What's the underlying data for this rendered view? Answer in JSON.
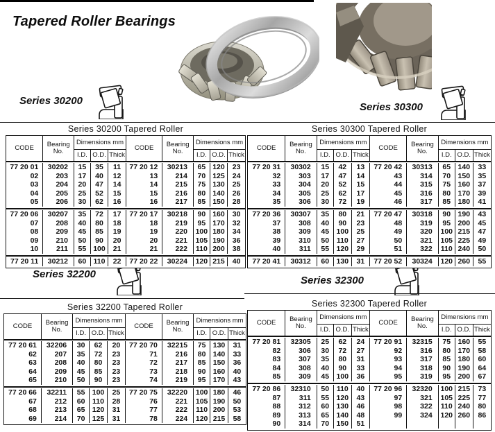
{
  "page": {
    "title": "Tapered Roller Bearings",
    "series_labels": [
      {
        "label": "Series 30200"
      },
      {
        "label": "Series 30300"
      },
      {
        "label": "Series 32200"
      },
      {
        "label": "Series 32300"
      }
    ],
    "icons": {
      "bearing_section": "bearing-section-icon"
    }
  },
  "colors": {
    "ink": "#111111",
    "paper": "#ffffff",
    "photo_metal": "#a8a8a8",
    "photo_tan": "#a89f90"
  },
  "table_headers": {
    "code": "CODE",
    "bearing": "Bearing No.",
    "dims": "Dimensions mm",
    "id": "I.D.",
    "od": "O.D.",
    "thick": "Thick"
  },
  "tables": [
    {
      "title": "Series 30200 Tapered Roller",
      "groups": [
        {
          "rows": [
            {
              "l": [
                "77 20 01",
                "30202",
                "15",
                "35",
                "11"
              ],
              "r": [
                "77 20 12",
                "30213",
                "65",
                "120",
                "23"
              ]
            },
            {
              "l": [
                "02",
                "203",
                "17",
                "40",
                "12"
              ],
              "r": [
                "13",
                "214",
                "70",
                "125",
                "24"
              ]
            },
            {
              "l": [
                "03",
                "204",
                "20",
                "47",
                "14"
              ],
              "r": [
                "14",
                "215",
                "75",
                "130",
                "25"
              ]
            },
            {
              "l": [
                "04",
                "205",
                "25",
                "52",
                "15"
              ],
              "r": [
                "15",
                "216",
                "80",
                "140",
                "26"
              ]
            },
            {
              "l": [
                "05",
                "206",
                "30",
                "62",
                "16"
              ],
              "r": [
                "16",
                "217",
                "85",
                "150",
                "28"
              ]
            }
          ]
        },
        {
          "rows": [
            {
              "l": [
                "77 20 06",
                "30207",
                "35",
                "72",
                "17"
              ],
              "r": [
                "77 20 17",
                "30218",
                "90",
                "160",
                "30"
              ]
            },
            {
              "l": [
                "07",
                "208",
                "40",
                "80",
                "18"
              ],
              "r": [
                "18",
                "219",
                "95",
                "170",
                "32"
              ]
            },
            {
              "l": [
                "08",
                "209",
                "45",
                "85",
                "19"
              ],
              "r": [
                "19",
                "220",
                "100",
                "180",
                "34"
              ]
            },
            {
              "l": [
                "09",
                "210",
                "50",
                "90",
                "20"
              ],
              "r": [
                "20",
                "221",
                "105",
                "190",
                "36"
              ]
            },
            {
              "l": [
                "10",
                "211",
                "55",
                "100",
                "21"
              ],
              "r": [
                "21",
                "222",
                "110",
                "200",
                "38"
              ]
            }
          ]
        },
        {
          "rows": [
            {
              "l": [
                "77 20 11",
                "30212",
                "60",
                "110",
                "22"
              ],
              "r": [
                "77 20 22",
                "30224",
                "120",
                "215",
                "40"
              ]
            }
          ]
        }
      ]
    },
    {
      "title": "Series 30300 Tapered Roller",
      "groups": [
        {
          "rows": [
            {
              "l": [
                "77 20 31",
                "30302",
                "15",
                "42",
                "13"
              ],
              "r": [
                "77 20 42",
                "30313",
                "65",
                "140",
                "33"
              ]
            },
            {
              "l": [
                "32",
                "303",
                "17",
                "47",
                "14"
              ],
              "r": [
                "43",
                "314",
                "70",
                "150",
                "35"
              ]
            },
            {
              "l": [
                "33",
                "304",
                "20",
                "52",
                "15"
              ],
              "r": [
                "44",
                "315",
                "75",
                "160",
                "37"
              ]
            },
            {
              "l": [
                "34",
                "305",
                "25",
                "62",
                "17"
              ],
              "r": [
                "45",
                "316",
                "80",
                "170",
                "39"
              ]
            },
            {
              "l": [
                "35",
                "306",
                "30",
                "72",
                "19"
              ],
              "r": [
                "46",
                "317",
                "85",
                "180",
                "41"
              ]
            }
          ]
        },
        {
          "rows": [
            {
              "l": [
                "77 20 36",
                "30307",
                "35",
                "80",
                "21"
              ],
              "r": [
                "77 20 47",
                "30318",
                "90",
                "190",
                "43"
              ]
            },
            {
              "l": [
                "37",
                "308",
                "40",
                "90",
                "23"
              ],
              "r": [
                "48",
                "319",
                "95",
                "200",
                "45"
              ]
            },
            {
              "l": [
                "38",
                "309",
                "45",
                "100",
                "25"
              ],
              "r": [
                "49",
                "320",
                "100",
                "215",
                "47"
              ]
            },
            {
              "l": [
                "39",
                "310",
                "50",
                "110",
                "27"
              ],
              "r": [
                "50",
                "321",
                "105",
                "225",
                "49"
              ]
            },
            {
              "l": [
                "40",
                "311",
                "55",
                "120",
                "29"
              ],
              "r": [
                "51",
                "322",
                "110",
                "240",
                "50"
              ]
            }
          ]
        },
        {
          "rows": [
            {
              "l": [
                "77 20 41",
                "30312",
                "60",
                "130",
                "31"
              ],
              "r": [
                "77 20 52",
                "30324",
                "120",
                "260",
                "55"
              ]
            }
          ]
        }
      ]
    },
    {
      "title": "Series 32200 Tapered Roller",
      "groups": [
        {
          "rows": [
            {
              "l": [
                "77 20 61",
                "32206",
                "30",
                "62",
                "20"
              ],
              "r": [
                "77 20 70",
                "32215",
                "75",
                "130",
                "31"
              ]
            },
            {
              "l": [
                "62",
                "207",
                "35",
                "72",
                "23"
              ],
              "r": [
                "71",
                "216",
                "80",
                "140",
                "33"
              ]
            },
            {
              "l": [
                "63",
                "208",
                "40",
                "80",
                "23"
              ],
              "r": [
                "72",
                "217",
                "85",
                "150",
                "36"
              ]
            },
            {
              "l": [
                "64",
                "209",
                "45",
                "85",
                "23"
              ],
              "r": [
                "73",
                "218",
                "90",
                "160",
                "40"
              ]
            },
            {
              "l": [
                "65",
                "210",
                "50",
                "90",
                "23"
              ],
              "r": [
                "74",
                "219",
                "95",
                "170",
                "43"
              ]
            }
          ]
        },
        {
          "rows": [
            {
              "l": [
                "77 20 66",
                "32211",
                "55",
                "100",
                "25"
              ],
              "r": [
                "77 20 75",
                "32220",
                "100",
                "180",
                "46"
              ]
            },
            {
              "l": [
                "67",
                "212",
                "60",
                "110",
                "28"
              ],
              "r": [
                "76",
                "221",
                "105",
                "190",
                "50"
              ]
            },
            {
              "l": [
                "68",
                "213",
                "65",
                "120",
                "31"
              ],
              "r": [
                "77",
                "222",
                "110",
                "200",
                "53"
              ]
            },
            {
              "l": [
                "69",
                "214",
                "70",
                "125",
                "31"
              ],
              "r": [
                "78",
                "224",
                "120",
                "215",
                "58"
              ]
            }
          ]
        }
      ]
    },
    {
      "title": "Series 32300 Tapered Roller",
      "groups": [
        {
          "rows": [
            {
              "l": [
                "77 20 81",
                "32305",
                "25",
                "62",
                "24"
              ],
              "r": [
                "77 20 91",
                "32315",
                "75",
                "160",
                "55"
              ]
            },
            {
              "l": [
                "82",
                "306",
                "30",
                "72",
                "27"
              ],
              "r": [
                "92",
                "316",
                "80",
                "170",
                "58"
              ]
            },
            {
              "l": [
                "83",
                "307",
                "35",
                "80",
                "31"
              ],
              "r": [
                "93",
                "317",
                "85",
                "180",
                "60"
              ]
            },
            {
              "l": [
                "84",
                "308",
                "40",
                "90",
                "33"
              ],
              "r": [
                "94",
                "318",
                "90",
                "190",
                "64"
              ]
            },
            {
              "l": [
                "85",
                "309",
                "45",
                "100",
                "36"
              ],
              "r": [
                "95",
                "319",
                "95",
                "200",
                "67"
              ]
            }
          ]
        },
        {
          "rows": [
            {
              "l": [
                "77 20 86",
                "32310",
                "50",
                "110",
                "40"
              ],
              "r": [
                "77 20 96",
                "32320",
                "100",
                "215",
                "73"
              ]
            },
            {
              "l": [
                "87",
                "311",
                "55",
                "120",
                "43"
              ],
              "r": [
                "97",
                "321",
                "105",
                "225",
                "77"
              ]
            },
            {
              "l": [
                "88",
                "312",
                "60",
                "130",
                "46"
              ],
              "r": [
                "98",
                "322",
                "110",
                "240",
                "80"
              ]
            },
            {
              "l": [
                "89",
                "313",
                "65",
                "140",
                "48"
              ],
              "r": [
                "99",
                "324",
                "120",
                "260",
                "86"
              ]
            },
            {
              "l": [
                "90",
                "314",
                "70",
                "150",
                "51"
              ],
              "r": [
                "",
                "",
                "",
                "",
                ""
              ]
            }
          ]
        }
      ]
    }
  ]
}
